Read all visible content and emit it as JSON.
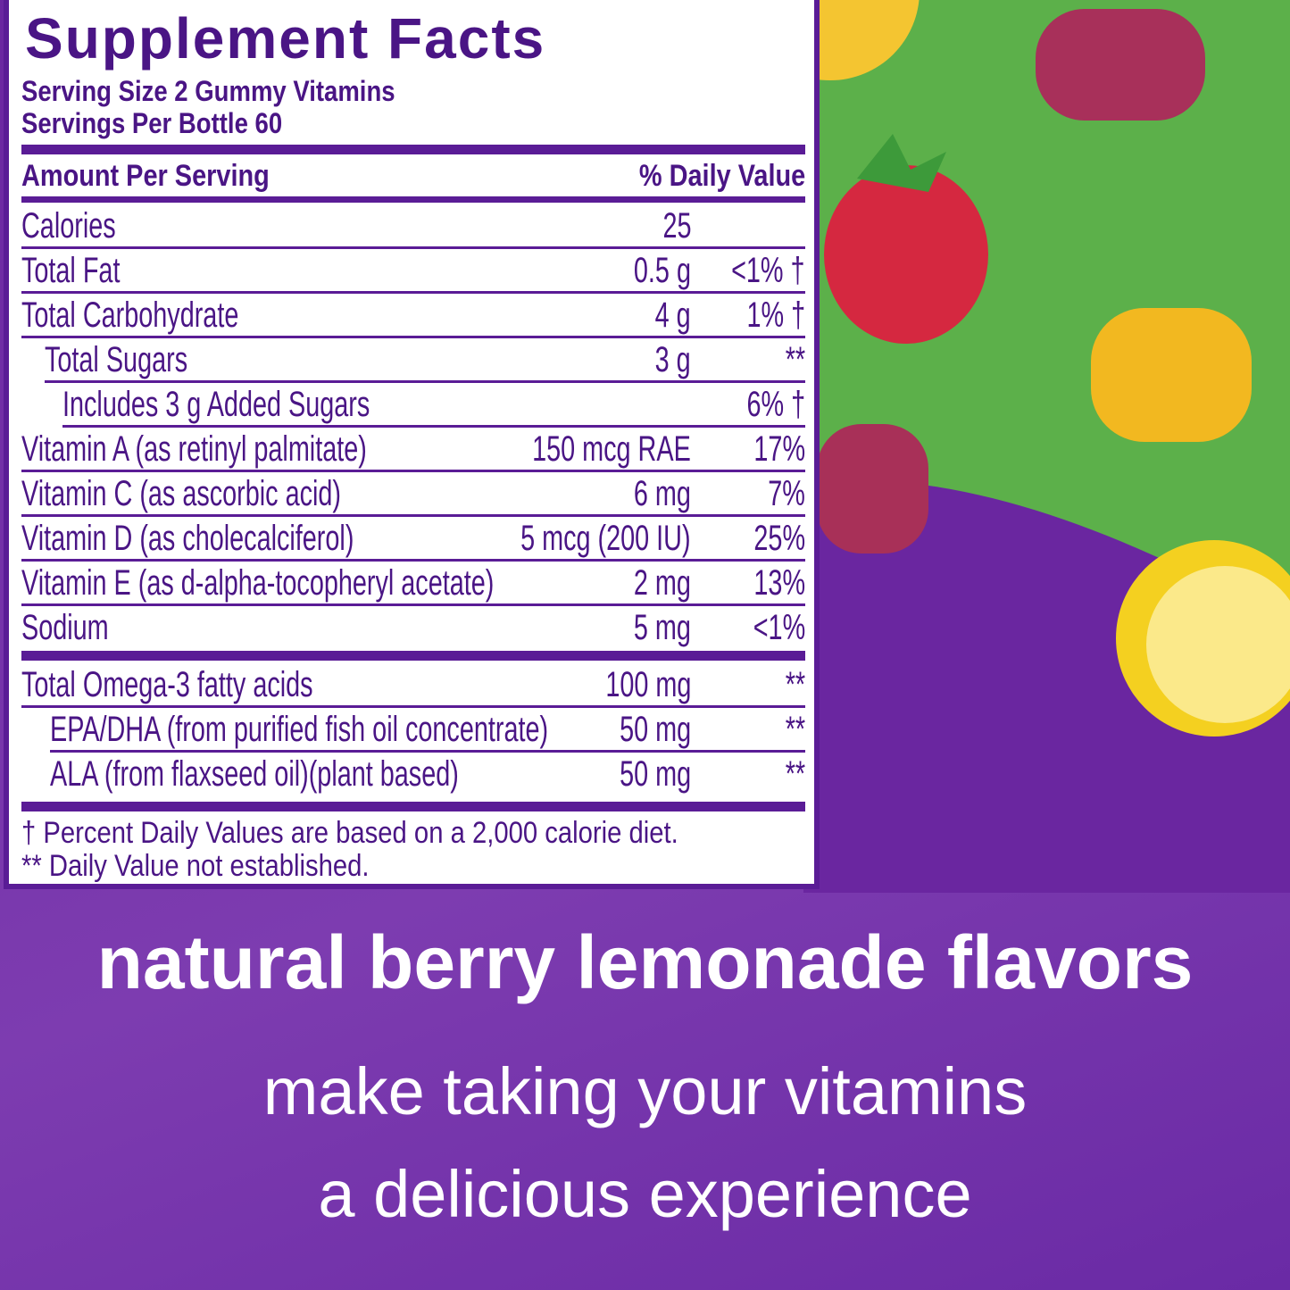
{
  "label": {
    "title": "Supplement Facts",
    "serving_size": "Serving Size 2 Gummy Vitamins",
    "servings_per": "Servings Per Bottle 60",
    "header_left": "Amount Per Serving",
    "header_right": "% Daily Value",
    "rows": [
      {
        "name": "Calories",
        "amount": "25",
        "dv": ""
      },
      {
        "name": "Total Fat",
        "amount": "0.5 g",
        "dv": "<1% †"
      },
      {
        "name": "Total Carbohydrate",
        "amount": "4 g",
        "dv": "1% †"
      },
      {
        "name": "Total Sugars",
        "amount": "3 g",
        "dv": "**"
      },
      {
        "name": "Includes 3 g Added Sugars",
        "amount": "",
        "dv": "6% †"
      },
      {
        "name": "Vitamin A (as retinyl palmitate)",
        "amount": "150 mcg RAE",
        "dv": "17%"
      },
      {
        "name": "Vitamin C (as ascorbic acid)",
        "amount": "6 mg",
        "dv": "7%"
      },
      {
        "name": "Vitamin D (as cholecalciferol)",
        "amount": "5 mcg (200 IU)",
        "dv": "25%"
      },
      {
        "name": "Vitamin E (as d-alpha-tocopheryl acetate)",
        "amount": "2 mg",
        "dv": "13%"
      },
      {
        "name": "Sodium",
        "amount": "5 mg",
        "dv": "<1%"
      },
      {
        "name": "Total Omega-3 fatty acids",
        "amount": "100 mg",
        "dv": "**"
      },
      {
        "name": "EPA/DHA (from purified fish oil concentrate)",
        "amount": "50 mg",
        "dv": "**"
      },
      {
        "name": "ALA (from flaxseed oil)(plant based)",
        "amount": "50 mg",
        "dv": "**"
      }
    ],
    "footnote_1": "† Percent Daily Values are based on a 2,000 calorie diet.",
    "footnote_2": "** Daily Value not established."
  },
  "tagline": {
    "headline": "natural berry lemonade flavors",
    "line_1": "make taking your vitamins",
    "line_2": "a delicious experience"
  },
  "colors": {
    "label_purple": "#4a1585",
    "green": "#5cb04a",
    "background_purple": "#6a26a0"
  }
}
